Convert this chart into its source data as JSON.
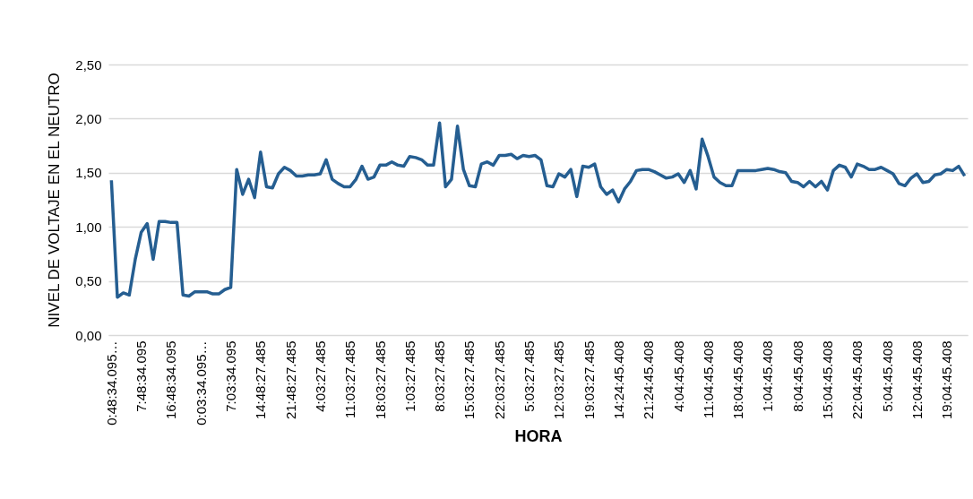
{
  "chart_data": {
    "type": "line",
    "xlabel": "HORA",
    "ylabel": "NIVEL DE VOLTAJE EN EL NEUTRO",
    "categories": [
      "0:48:34.095…",
      null,
      null,
      null,
      null,
      "7:48:34.095",
      null,
      null,
      null,
      null,
      "16:48:34.095",
      null,
      null,
      null,
      null,
      "0:03:34.095…",
      null,
      null,
      null,
      null,
      "7:03:34.095",
      null,
      null,
      null,
      null,
      "14:48:27.485",
      null,
      null,
      null,
      null,
      "21:48:27.485",
      null,
      null,
      null,
      null,
      "4:03:27.485",
      null,
      null,
      null,
      null,
      "11:03:27.485",
      null,
      null,
      null,
      null,
      "18:03:27.485",
      null,
      null,
      null,
      null,
      "1:03:27.485",
      null,
      null,
      null,
      null,
      "8:03:27.485",
      null,
      null,
      null,
      null,
      "15:03:27.485",
      null,
      null,
      null,
      null,
      "22:03:27.485",
      null,
      null,
      null,
      null,
      "5:03:27.485",
      null,
      null,
      null,
      null,
      "12:03:27.485",
      null,
      null,
      null,
      null,
      "19:03:27.485",
      null,
      null,
      null,
      null,
      "14:24:45.408",
      null,
      null,
      null,
      null,
      "21:24:45.408",
      null,
      null,
      null,
      null,
      "4:04:45.408",
      null,
      null,
      null,
      null,
      "11:04:45.408",
      null,
      null,
      null,
      null,
      "18:04:45.408",
      null,
      null,
      null,
      null,
      "1:04:45.408",
      null,
      null,
      null,
      null,
      "8:04:45.408",
      null,
      null,
      null,
      null,
      "15:04:45.408",
      null,
      null,
      null,
      null,
      "22:04:45.408",
      null,
      null,
      null,
      null,
      "5:04:45.408",
      null,
      null,
      null,
      null,
      "12:04:45.408",
      null,
      null,
      null,
      null,
      "19:04:45.408",
      null,
      null,
      null
    ],
    "series": [
      {
        "color": "#255e91",
        "values": [
          1.43,
          0.35,
          0.39,
          0.37,
          0.7,
          0.95,
          1.03,
          0.7,
          1.05,
          1.05,
          1.04,
          1.04,
          0.37,
          0.36,
          0.4,
          0.4,
          0.4,
          0.38,
          0.38,
          0.42,
          0.44,
          1.53,
          1.3,
          1.44,
          1.27,
          1.69,
          1.37,
          1.36,
          1.49,
          1.55,
          1.52,
          1.47,
          1.47,
          1.48,
          1.48,
          1.49,
          1.62,
          1.44,
          1.4,
          1.37,
          1.37,
          1.44,
          1.56,
          1.44,
          1.46,
          1.57,
          1.57,
          1.6,
          1.57,
          1.56,
          1.65,
          1.64,
          1.62,
          1.57,
          1.57,
          1.96,
          1.37,
          1.44,
          1.93,
          1.53,
          1.38,
          1.37,
          1.58,
          1.6,
          1.57,
          1.66,
          1.66,
          1.67,
          1.63,
          1.66,
          1.65,
          1.66,
          1.62,
          1.38,
          1.37,
          1.49,
          1.46,
          1.53,
          1.28,
          1.56,
          1.55,
          1.58,
          1.37,
          1.3,
          1.34,
          1.23,
          1.35,
          1.42,
          1.52,
          1.53,
          1.53,
          1.51,
          1.48,
          1.45,
          1.46,
          1.49,
          1.41,
          1.52,
          1.35,
          1.81,
          1.65,
          1.46,
          1.41,
          1.38,
          1.38,
          1.52,
          1.52,
          1.52,
          1.52,
          1.53,
          1.54,
          1.53,
          1.51,
          1.5,
          1.42,
          1.41,
          1.37,
          1.42,
          1.37,
          1.42,
          1.34,
          1.52,
          1.57,
          1.55,
          1.46,
          1.58,
          1.56,
          1.53,
          1.53,
          1.55,
          1.52,
          1.49,
          1.4,
          1.38,
          1.45,
          1.49,
          1.41,
          1.42,
          1.48,
          1.49,
          1.53,
          1.52,
          1.56,
          1.47
        ]
      }
    ],
    "ylim": [
      0,
      2.5
    ],
    "yticks": [
      {
        "value": 0,
        "label": "0,00"
      },
      {
        "value": 0.5,
        "label": "0,50"
      },
      {
        "value": 1,
        "label": "1,00"
      },
      {
        "value": 1.5,
        "label": "1,50"
      },
      {
        "value": 2,
        "label": "2,00"
      },
      {
        "value": 2.5,
        "label": "2,50"
      }
    ],
    "grid": "y",
    "marker": "none",
    "line_style": "solid"
  }
}
